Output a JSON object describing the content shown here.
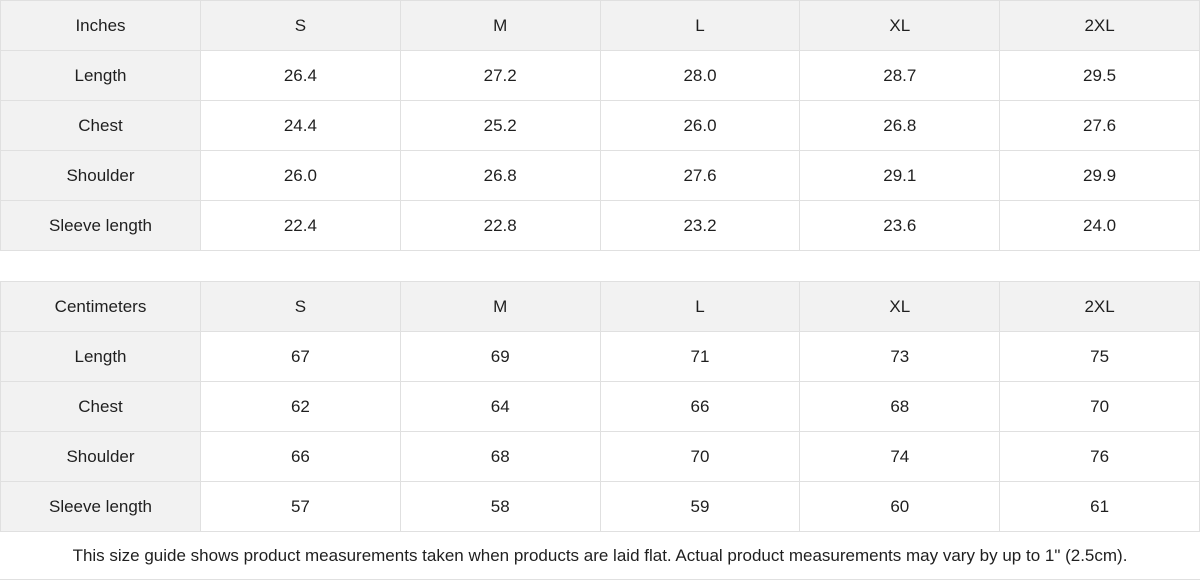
{
  "tables": [
    {
      "unit_label": "Inches",
      "sizes": [
        "S",
        "M",
        "L",
        "XL",
        "2XL"
      ],
      "rows": [
        {
          "label": "Length",
          "values": [
            "26.4",
            "27.2",
            "28.0",
            "28.7",
            "29.5"
          ]
        },
        {
          "label": "Chest",
          "values": [
            "24.4",
            "25.2",
            "26.0",
            "26.8",
            "27.6"
          ]
        },
        {
          "label": "Shoulder",
          "values": [
            "26.0",
            "26.8",
            "27.6",
            "29.1",
            "29.9"
          ]
        },
        {
          "label": "Sleeve length",
          "values": [
            "22.4",
            "22.8",
            "23.2",
            "23.6",
            "24.0"
          ]
        }
      ]
    },
    {
      "unit_label": "Centimeters",
      "sizes": [
        "S",
        "M",
        "L",
        "XL",
        "2XL"
      ],
      "rows": [
        {
          "label": "Length",
          "values": [
            "67",
            "69",
            "71",
            "73",
            "75"
          ]
        },
        {
          "label": "Chest",
          "values": [
            "62",
            "64",
            "66",
            "68",
            "70"
          ]
        },
        {
          "label": "Shoulder",
          "values": [
            "66",
            "68",
            "70",
            "74",
            "76"
          ]
        },
        {
          "label": "Sleeve length",
          "values": [
            "57",
            "58",
            "59",
            "60",
            "61"
          ]
        }
      ]
    }
  ],
  "footer": {
    "note": "This size guide shows product measurements taken when products are laid flat.  Actual product measurements may vary by up to 1\" (2.5cm)."
  },
  "colors": {
    "header_bg": "#f2f2f2",
    "border": "#e0e0e0",
    "text": "#1f1f1f"
  }
}
